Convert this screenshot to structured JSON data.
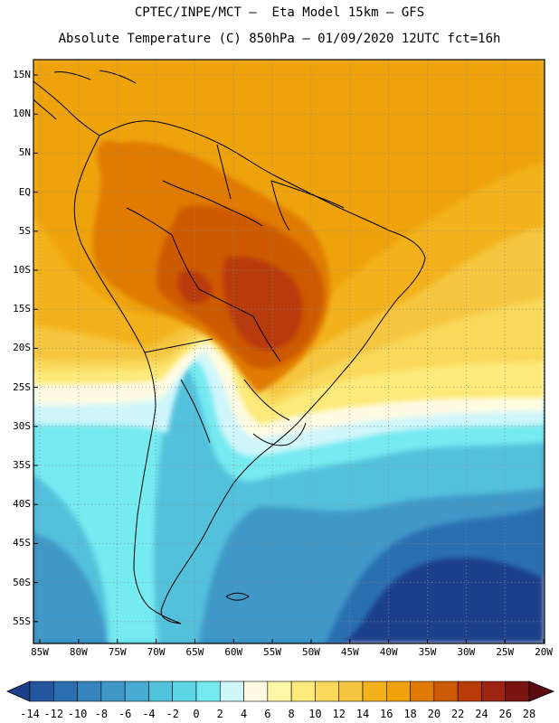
{
  "title": {
    "line1": "CPTEC/INPE/MCT –  Eta Model 15km – GFS",
    "line2": "Absolute Temperature (C) 850hPa – 01/09/2020 12UTC fct=16h"
  },
  "axes": {
    "lat_labels": [
      "15N",
      "10N",
      "5N",
      "EQ",
      "5S",
      "10S",
      "15S",
      "20S",
      "25S",
      "30S",
      "35S",
      "40S",
      "45S",
      "50S",
      "55S"
    ],
    "lon_labels": [
      "85W",
      "80W",
      "75W",
      "70W",
      "65W",
      "60W",
      "55W",
      "50W",
      "45W",
      "40W",
      "35W",
      "30W",
      "25W",
      "20W"
    ]
  },
  "colorbar": {
    "values": [
      "-14",
      "-12",
      "-10",
      "-8",
      "-6",
      "-4",
      "-2",
      "0",
      "2",
      "4",
      "6",
      "8",
      "10",
      "12",
      "14",
      "16",
      "18",
      "20",
      "22",
      "24",
      "26",
      "28"
    ],
    "colors": [
      "#1e3f8a",
      "#2457a0",
      "#2c6fb0",
      "#3584bd",
      "#3f98c8",
      "#48abd2",
      "#52c1dc",
      "#5fd6e6",
      "#74eaf0",
      "#cff6fb",
      "#fffbe3",
      "#fff6a8",
      "#fdea7a",
      "#f9d85a",
      "#f5c640",
      "#f3b21c",
      "#eea30c",
      "#e07a06",
      "#cd5a04",
      "#b83a08",
      "#9b2510",
      "#7a1410",
      "#5b0a12"
    ]
  },
  "map_colors": {
    "cold_deep": "#1e3f8a",
    "cold": "#2c6fb0",
    "cool": "#3f98c8",
    "cool_light": "#52c1dc",
    "cyan": "#74eaf0",
    "pale": "#cff6fb",
    "cream": "#fffbe3",
    "yellow": "#fdea7a",
    "gold": "#f9d85a",
    "amber": "#f5c640",
    "orange_light": "#f3b21c",
    "orange": "#eea30c",
    "hot": "#e07a06",
    "hotter": "#cd5a04",
    "hottest": "#b83a08"
  }
}
